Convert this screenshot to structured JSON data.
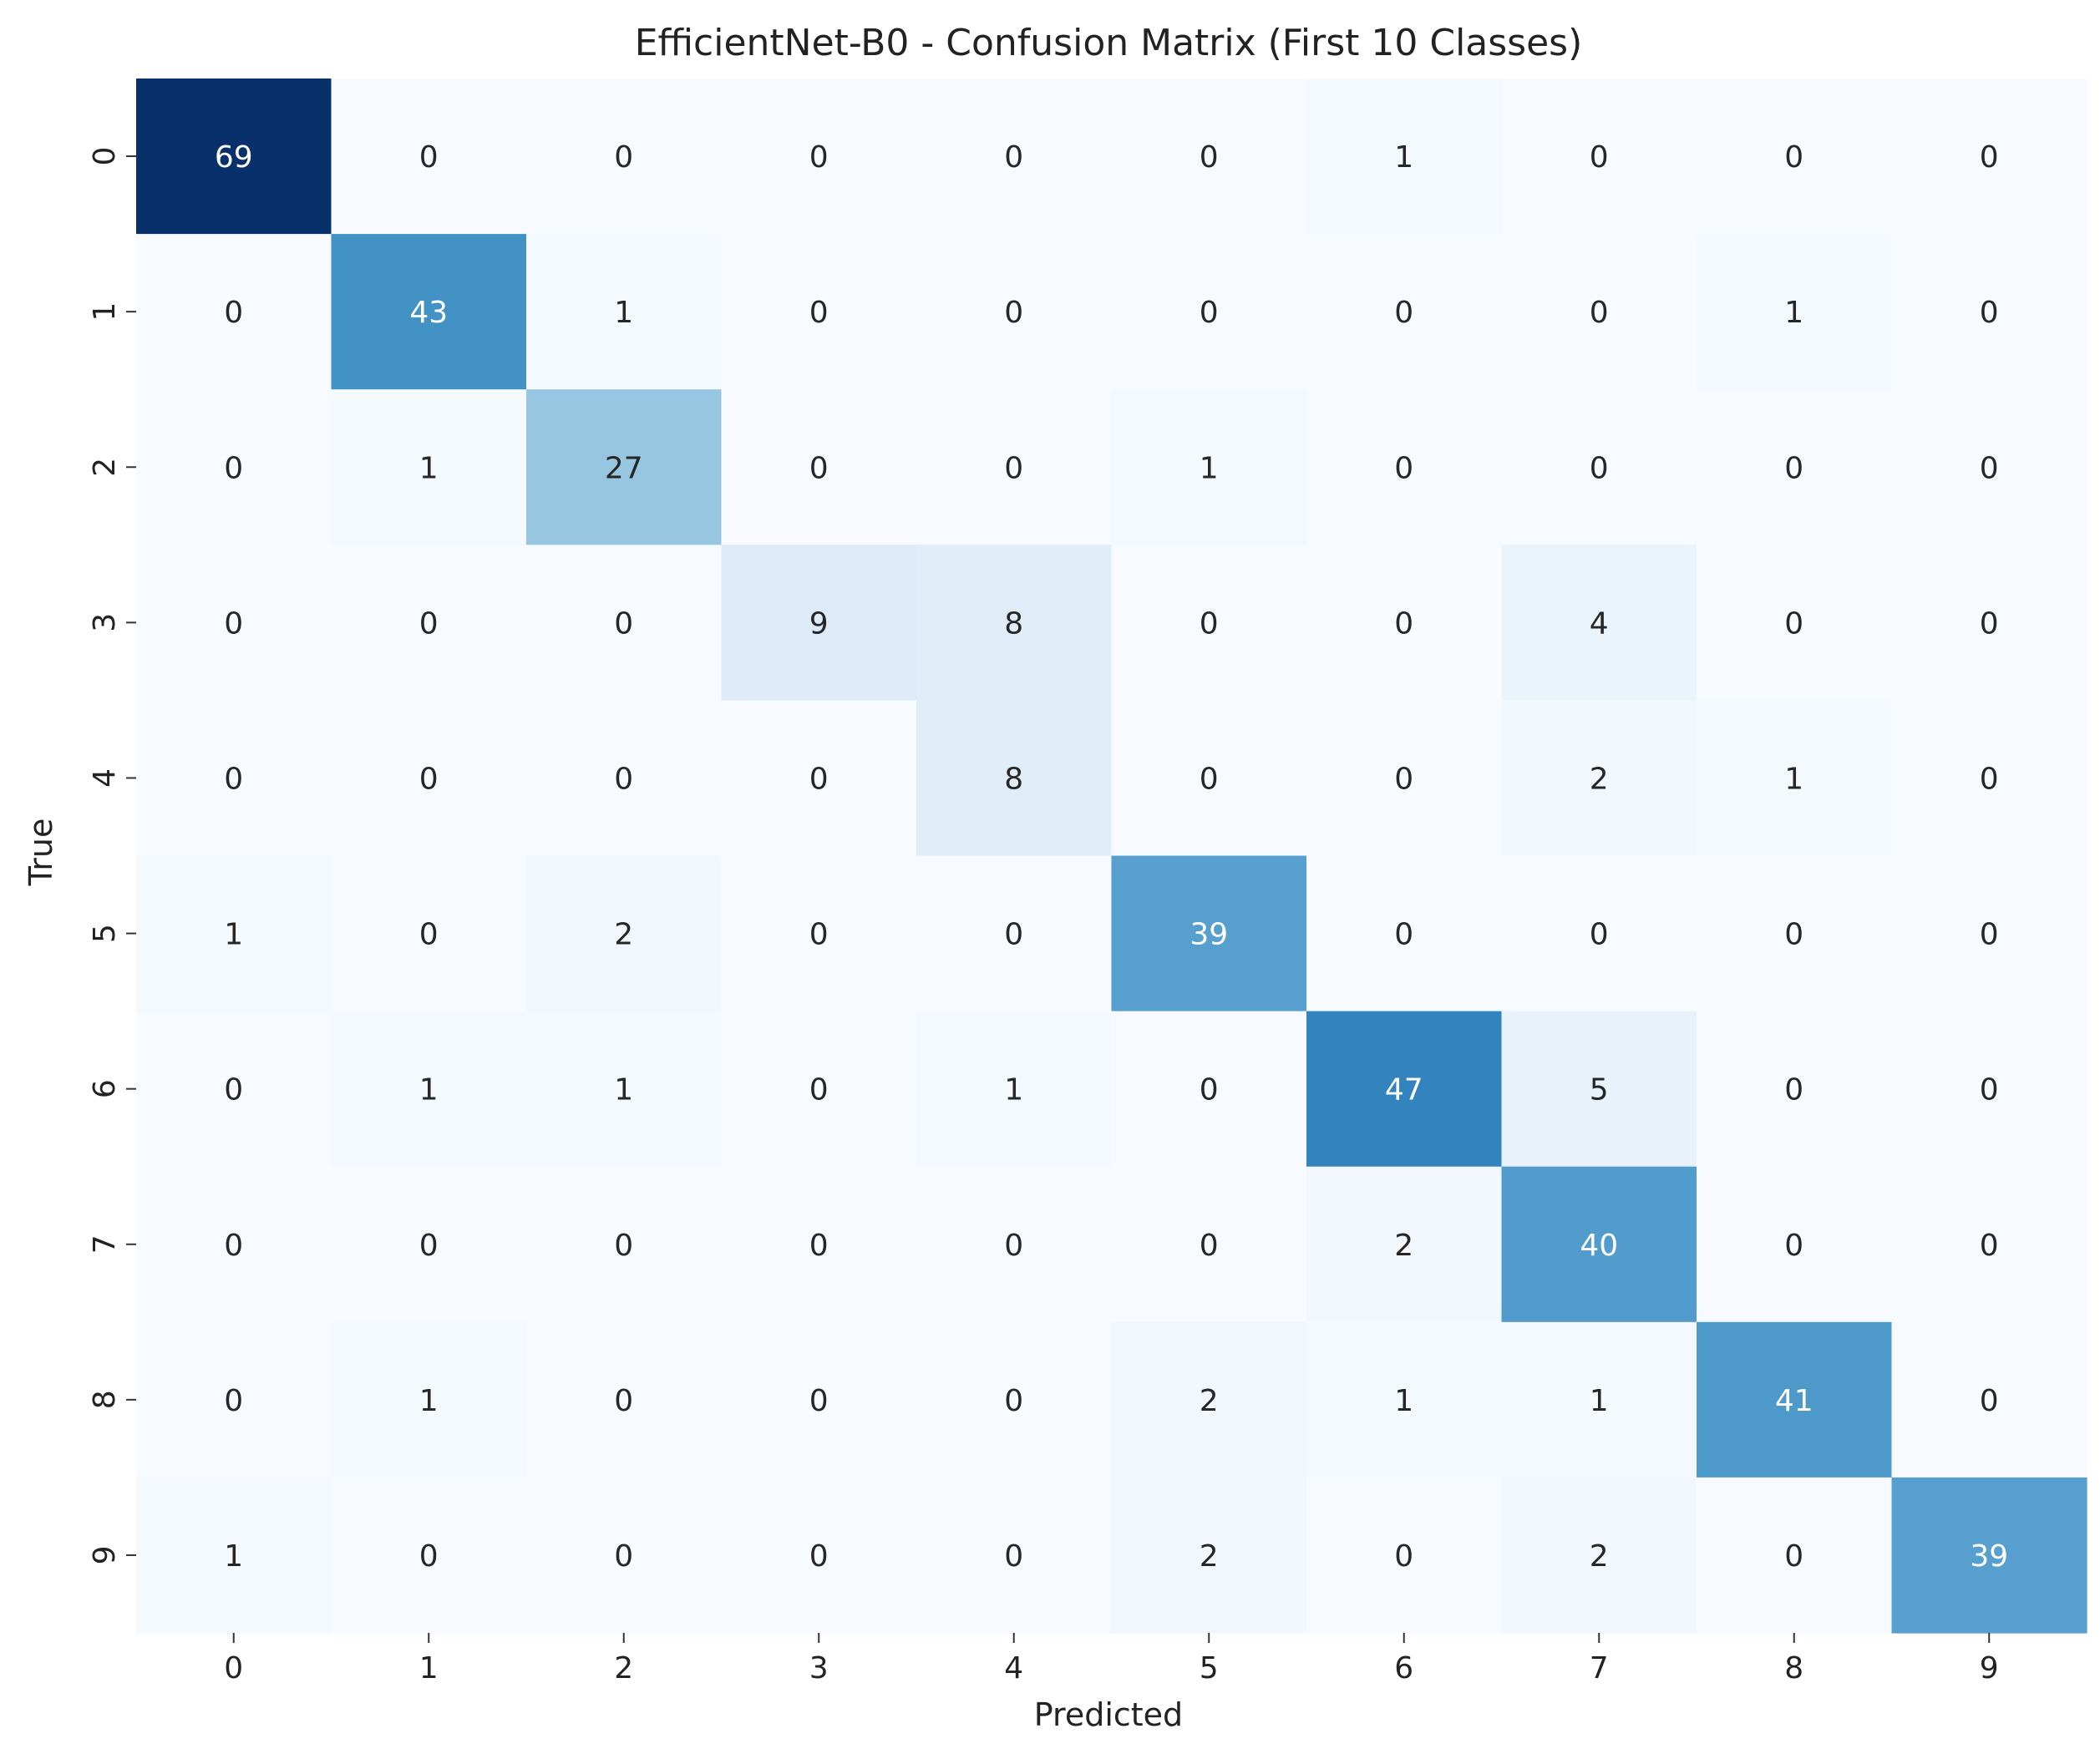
{
  "chart_data": {
    "type": "heatmap",
    "title": "EfficientNet-B0 - Confusion Matrix (First 10 Classes)",
    "xlabel": "Predicted",
    "ylabel": "True",
    "x_categories": [
      "0",
      "1",
      "2",
      "3",
      "4",
      "5",
      "6",
      "7",
      "8",
      "9"
    ],
    "y_categories": [
      "0",
      "1",
      "2",
      "3",
      "4",
      "5",
      "6",
      "7",
      "8",
      "9"
    ],
    "matrix": [
      [
        69,
        0,
        0,
        0,
        0,
        0,
        1,
        0,
        0,
        0
      ],
      [
        0,
        43,
        1,
        0,
        0,
        0,
        0,
        0,
        1,
        0
      ],
      [
        0,
        1,
        27,
        0,
        0,
        1,
        0,
        0,
        0,
        0
      ],
      [
        0,
        0,
        0,
        9,
        8,
        0,
        0,
        4,
        0,
        0
      ],
      [
        0,
        0,
        0,
        0,
        8,
        0,
        0,
        2,
        1,
        0
      ],
      [
        1,
        0,
        2,
        0,
        0,
        39,
        0,
        0,
        0,
        0
      ],
      [
        0,
        1,
        1,
        0,
        1,
        0,
        47,
        5,
        0,
        0
      ],
      [
        0,
        0,
        0,
        0,
        0,
        0,
        2,
        40,
        0,
        0
      ],
      [
        0,
        1,
        0,
        0,
        0,
        2,
        1,
        1,
        41,
        0
      ],
      [
        1,
        0,
        0,
        0,
        0,
        2,
        0,
        2,
        0,
        39
      ]
    ],
    "value_range": [
      0,
      69
    ],
    "colormap": "Blues",
    "colorbar": false,
    "grid": false
  }
}
